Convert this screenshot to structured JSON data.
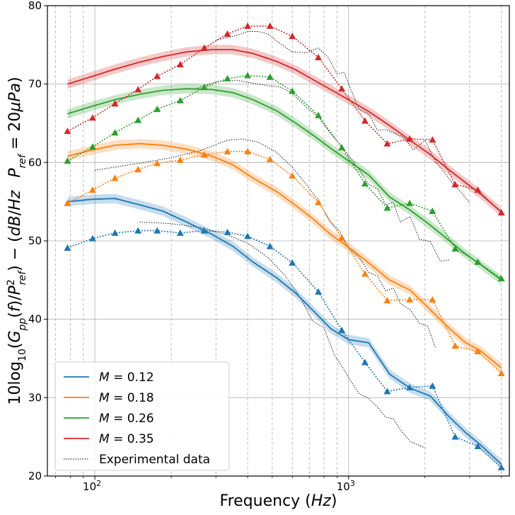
{
  "chart_data": {
    "type": "line",
    "xscale": "log",
    "xlim": [
      65,
      4300
    ],
    "ylim": [
      20,
      80
    ],
    "xlabel": "Frequency (Hz)",
    "ylabel_main": "10log10(Gpp(f)/P²ref) − (dB/Hz   Pref = 20μPa)",
    "xticks": [
      {
        "value": 100,
        "label": "10",
        "exp": "2"
      },
      {
        "value": 1000,
        "label": "10",
        "exp": "3"
      }
    ],
    "yticks": [
      20,
      30,
      40,
      50,
      60,
      70,
      80
    ],
    "minor_xticks": [
      70,
      80,
      90,
      200,
      300,
      400,
      500,
      600,
      700,
      800,
      900,
      2000,
      3000,
      4000
    ],
    "grid": true,
    "legend_position": "lower-left",
    "series": [
      {
        "name": "M = 0.12",
        "color": "#1f77b4",
        "model_x": [
          78,
          98,
          120,
          150,
          185,
          230,
          290,
          350,
          420,
          520,
          620,
          730,
          850,
          1000,
          1200,
          1450,
          1750,
          2100,
          2500,
          2900,
          3300,
          4000
        ],
        "model_y": [
          55.0,
          55.3,
          55.4,
          54.6,
          53.8,
          52.4,
          50.8,
          49.3,
          47.3,
          45.3,
          43.3,
          41.0,
          38.8,
          37.4,
          37.0,
          33.0,
          31.2,
          30.2,
          27.5,
          25.5,
          24.0,
          21.5
        ],
        "tri_x": [
          78,
          98,
          120,
          148,
          176,
          217,
          270,
          333,
          400,
          490,
          600,
          760,
          940,
          1160,
          1420,
          1740,
          2140,
          2630,
          3230,
          4000
        ],
        "tri_y": [
          49.1,
          50.3,
          51.0,
          51.3,
          51.3,
          51.0,
          51.3,
          51.1,
          50.6,
          49.3,
          47.2,
          43.5,
          38.6,
          34.5,
          30.8,
          31.3,
          31.5,
          25.0,
          23.8,
          21.1
        ]
      },
      {
        "name": "M = 0.18",
        "color": "#ff7f0e",
        "model_x": [
          78,
          98,
          120,
          150,
          185,
          230,
          290,
          350,
          420,
          520,
          620,
          730,
          850,
          1000,
          1200,
          1450,
          1750,
          2100,
          2500,
          2900,
          3300,
          4000
        ],
        "model_y": [
          60.8,
          61.6,
          62.2,
          62.4,
          62.2,
          61.7,
          60.8,
          59.7,
          58.0,
          56.3,
          54.5,
          52.7,
          50.8,
          49.2,
          47.2,
          45.0,
          43.7,
          41.2,
          38.8,
          37.0,
          36.0,
          33.8
        ],
        "tri_x": [
          78,
          98,
          120,
          148,
          176,
          217,
          270,
          333,
          400,
          490,
          600,
          760,
          940,
          1160,
          1420,
          1740,
          2140,
          2630,
          3230,
          4000
        ],
        "tri_y": [
          54.8,
          56.5,
          58.0,
          59.1,
          59.9,
          60.3,
          61.0,
          61.4,
          61.4,
          60.4,
          58.3,
          54.9,
          50.4,
          45.8,
          42.4,
          42.5,
          42.5,
          36.6,
          35.9,
          33.1
        ]
      },
      {
        "name": "M = 0.26",
        "color": "#2ca02c",
        "model_x": [
          78,
          98,
          120,
          150,
          185,
          230,
          290,
          350,
          420,
          520,
          620,
          730,
          850,
          1000,
          1200,
          1450,
          1750,
          2100,
          2500,
          2900,
          3300,
          4000
        ],
        "model_y": [
          66.2,
          67.2,
          68.0,
          68.7,
          69.2,
          69.4,
          69.3,
          68.9,
          68.0,
          66.6,
          65.0,
          63.4,
          61.8,
          60.2,
          58.4,
          55.6,
          53.9,
          52.0,
          50.0,
          48.3,
          47.0,
          45.0
        ],
        "tri_x": [
          78,
          98,
          120,
          148,
          176,
          217,
          270,
          333,
          400,
          490,
          600,
          760,
          940,
          1160,
          1420,
          1740,
          2140,
          2630,
          3230,
          4000
        ],
        "tri_y": [
          60.2,
          62.0,
          63.8,
          65.4,
          66.8,
          67.9,
          69.6,
          70.7,
          71.1,
          70.9,
          69.1,
          66.0,
          61.9,
          57.3,
          54.2,
          54.8,
          53.8,
          49.0,
          47.3,
          45.2
        ]
      },
      {
        "name": "M = 0.35",
        "color": "#d62728",
        "model_x": [
          78,
          98,
          120,
          150,
          185,
          230,
          290,
          350,
          420,
          520,
          620,
          730,
          850,
          1000,
          1200,
          1450,
          1750,
          2100,
          2500,
          2900,
          3300,
          4000
        ],
        "model_y": [
          70.0,
          71.0,
          71.9,
          72.8,
          73.5,
          74.1,
          74.4,
          74.4,
          73.9,
          72.9,
          71.8,
          70.5,
          69.3,
          68.0,
          66.5,
          64.7,
          62.8,
          61.0,
          59.0,
          57.4,
          56.0,
          53.7
        ],
        "tri_x": [
          78,
          98,
          120,
          148,
          176,
          217,
          270,
          333,
          400,
          490,
          600,
          760,
          940,
          1160,
          1420,
          1740,
          2140,
          2630,
          3230,
          4000
        ],
        "tri_y": [
          64.0,
          65.7,
          67.5,
          69.3,
          71.0,
          72.5,
          74.6,
          76.4,
          77.4,
          77.4,
          76.1,
          73.4,
          69.4,
          65.3,
          62.4,
          63.0,
          62.9,
          57.2,
          56.5,
          53.6
        ]
      }
    ],
    "experimental": {
      "name": "Experimental data",
      "color": "#000000",
      "curves": [
        {
          "x": [
            150,
            200,
            260,
            330,
            400,
            480,
            560,
            650,
            720,
            800,
            880,
            950,
            1020,
            1100,
            1200,
            1300,
            1400,
            1500,
            1600,
            1750,
            1900,
            2000
          ],
          "y": [
            52.4,
            52.2,
            51.7,
            50.8,
            49.7,
            47.9,
            45.6,
            42.6,
            39.8,
            38.9,
            35.4,
            33.8,
            32.1,
            30.5,
            29.9,
            28.8,
            27.5,
            27.3,
            25.9,
            24.4,
            23.9,
            23.6
          ]
        },
        {
          "x": [
            100,
            150,
            200,
            260,
            330,
            380,
            440,
            520,
            600,
            680,
            760,
            840,
            920,
            1000,
            1100,
            1200,
            1300,
            1400,
            1500,
            1600,
            1750,
            1900,
            2050,
            2200
          ],
          "y": [
            59.0,
            59.9,
            60.6,
            61.5,
            62.8,
            63.0,
            62.6,
            61.3,
            59.4,
            57.2,
            55.2,
            52.5,
            51.3,
            49.1,
            47.9,
            46.0,
            45.5,
            43.6,
            44.0,
            42.0,
            41.2,
            39.5,
            39.1,
            36.4
          ]
        },
        {
          "x": [
            250,
            300,
            360,
            420,
            480,
            540,
            600,
            680,
            760,
            840,
            920,
            1000,
            1100,
            1200,
            1300,
            1400,
            1500,
            1600,
            1750,
            1900,
            2100,
            2300,
            2500
          ],
          "y": [
            69.4,
            70.3,
            70.5,
            70.1,
            69.8,
            69.6,
            68.8,
            67.1,
            65.8,
            63.9,
            62.4,
            60.9,
            59.1,
            57.2,
            56.6,
            54.6,
            54.9,
            52.4,
            53.1,
            50.2,
            49.9,
            47.4,
            47.6
          ]
        },
        {
          "x": [
            300,
            360,
            400,
            440,
            480,
            520,
            600,
            680,
            760,
            830,
            900,
            960,
            1020,
            1100,
            1200,
            1300,
            1400,
            1500,
            1650,
            1800,
            2000,
            2200,
            2400,
            2600,
            2800,
            3000
          ],
          "y": [
            75.6,
            76.2,
            76.7,
            76.7,
            76.4,
            75.5,
            74.1,
            74.0,
            74.6,
            73.4,
            71.3,
            71.5,
            69.3,
            66.8,
            66.2,
            64.1,
            64.2,
            63.8,
            63.2,
            61.6,
            62.8,
            60.1,
            58.6,
            57.1,
            56.1,
            54.8
          ]
        }
      ]
    }
  }
}
